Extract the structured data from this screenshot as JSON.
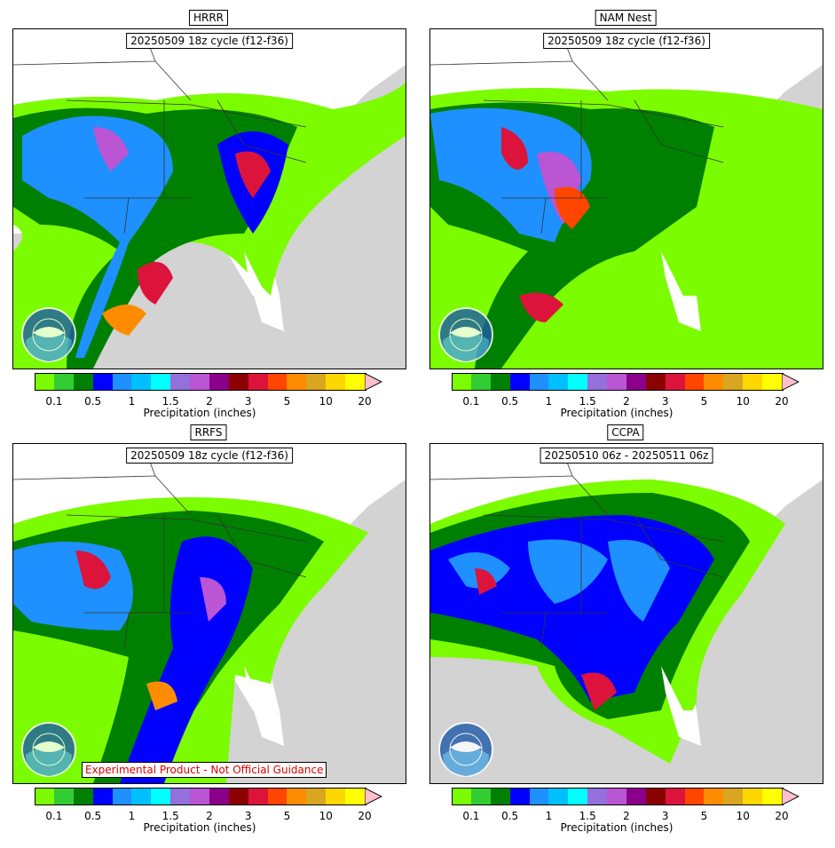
{
  "panels": [
    {
      "title": "HRRR",
      "cycle": "20250509 18z cycle (f12-f36)",
      "disclaimer": ""
    },
    {
      "title": "NAM Nest",
      "cycle": "20250509 18z cycle (f12-f36)",
      "disclaimer": ""
    },
    {
      "title": "RRFS",
      "cycle": "20250509 18z cycle (f12-f36)",
      "disclaimer": "Experimental Product - Not Official Guidance"
    },
    {
      "title": "CCPA",
      "cycle": "20250510 06z - 20250511 06z",
      "disclaimer": ""
    }
  ],
  "colorbar": {
    "label": "Precipitation (inches)",
    "ticks": [
      "0.1",
      "0.5",
      "1",
      "1.5",
      "2",
      "3",
      "5",
      "10",
      "20"
    ],
    "colors": [
      "#7cfc00",
      "#32cd32",
      "#008000",
      "#0000ff",
      "#1e90ff",
      "#00bfff",
      "#00ffff",
      "#9370db",
      "#ba55d3",
      "#8b008b",
      "#8b0000",
      "#dc143c",
      "#ff4500",
      "#ff8c00",
      "#daa520",
      "#ffd700",
      "#ffff00"
    ],
    "overflow_color": "#ffc0cb"
  },
  "colors": {
    "ocean": "#d3d3d3",
    "land": "#ffffff",
    "light_precip": "#7cfc00",
    "mid_precip": "#008000",
    "heavy_precip": "#0000ff",
    "extreme_precip": "#dc143c"
  },
  "logo": "noaa-logo"
}
